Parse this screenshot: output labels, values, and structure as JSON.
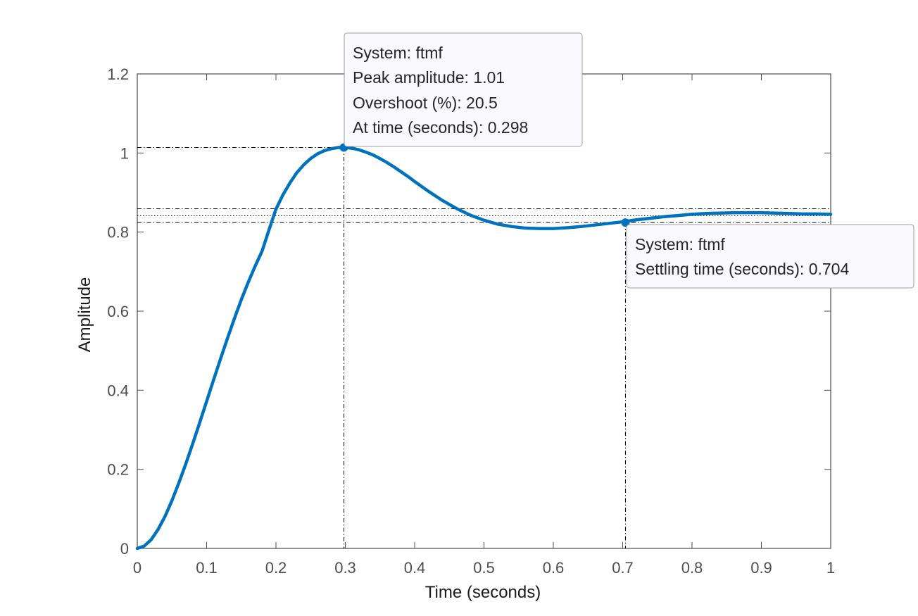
{
  "chart_data": {
    "type": "line",
    "title": "",
    "xlabel": "Time (seconds)",
    "ylabel": "Amplitude",
    "xlim": [
      0,
      1
    ],
    "ylim": [
      0,
      1.2
    ],
    "xticks": [
      0,
      0.1,
      0.2,
      0.3,
      0.4,
      0.5,
      0.6,
      0.7,
      0.8,
      0.9,
      1
    ],
    "xtick_labels": [
      "0",
      "0.1",
      "0.2",
      "0.3",
      "0.4",
      "0.5",
      "0.6",
      "0.7",
      "0.8",
      "0.9",
      "1"
    ],
    "yticks": [
      0,
      0.2,
      0.4,
      0.6,
      0.8,
      1,
      1.2
    ],
    "ytick_labels": [
      "0",
      "0.2",
      "0.4",
      "0.6",
      "0.8",
      "1",
      "1.2"
    ],
    "grid": false,
    "series": [
      {
        "color": "#0072BD",
        "x": [
          0,
          0.01,
          0.02,
          0.03,
          0.04,
          0.05,
          0.06,
          0.07,
          0.08,
          0.09,
          0.1,
          0.11,
          0.12,
          0.13,
          0.14,
          0.15,
          0.16,
          0.17,
          0.18,
          0.19,
          0.2,
          0.21,
          0.22,
          0.23,
          0.24,
          0.25,
          0.26,
          0.27,
          0.28,
          0.29,
          0.3,
          0.31,
          0.32,
          0.33,
          0.34,
          0.35,
          0.36,
          0.37,
          0.38,
          0.39,
          0.4,
          0.42,
          0.44,
          0.46,
          0.48,
          0.5,
          0.52,
          0.54,
          0.56,
          0.58,
          0.6,
          0.62,
          0.64,
          0.66,
          0.68,
          0.7,
          0.72,
          0.74,
          0.76,
          0.78,
          0.8,
          0.82,
          0.84,
          0.86,
          0.88,
          0.9,
          0.92,
          0.94,
          0.96,
          0.98,
          1.0
        ],
        "y": [
          0,
          0.006,
          0.022,
          0.048,
          0.081,
          0.121,
          0.166,
          0.214,
          0.265,
          0.318,
          0.372,
          0.426,
          0.479,
          0.531,
          0.581,
          0.629,
          0.673,
          0.714,
          0.752,
          0.806,
          0.858,
          0.894,
          0.924,
          0.95,
          0.97,
          0.986,
          0.998,
          1.006,
          1.011,
          1.014,
          1.014,
          1.012,
          1.008,
          1.002,
          0.995,
          0.986,
          0.976,
          0.965,
          0.953,
          0.941,
          0.928,
          0.903,
          0.88,
          0.86,
          0.843,
          0.83,
          0.82,
          0.814,
          0.81,
          0.809,
          0.809,
          0.811,
          0.814,
          0.818,
          0.822,
          0.826,
          0.831,
          0.835,
          0.839,
          0.842,
          0.845,
          0.847,
          0.848,
          0.849,
          0.849,
          0.849,
          0.848,
          0.847,
          0.846,
          0.846,
          0.845
        ]
      }
    ],
    "reference_lines": {
      "peak_y": 1.014,
      "peak_x": 0.298,
      "settling_upper_y": 0.859,
      "settling_lower_y": 0.824,
      "steady_state_y": 0.8415,
      "settling_x": 0.704
    },
    "markers": [
      {
        "x": 0.298,
        "y": 1.014
      },
      {
        "x": 0.704,
        "y": 0.824
      }
    ],
    "annotations": [
      {
        "name": "peak-datatip",
        "lines": [
          "System: ftmf",
          "Peak amplitude: 1.01",
          "Overshoot (%): 20.5",
          "At time (seconds): 0.298"
        ]
      },
      {
        "name": "settling-datatip",
        "lines": [
          "System: ftmf",
          "Settling time (seconds): 0.704"
        ]
      }
    ]
  }
}
